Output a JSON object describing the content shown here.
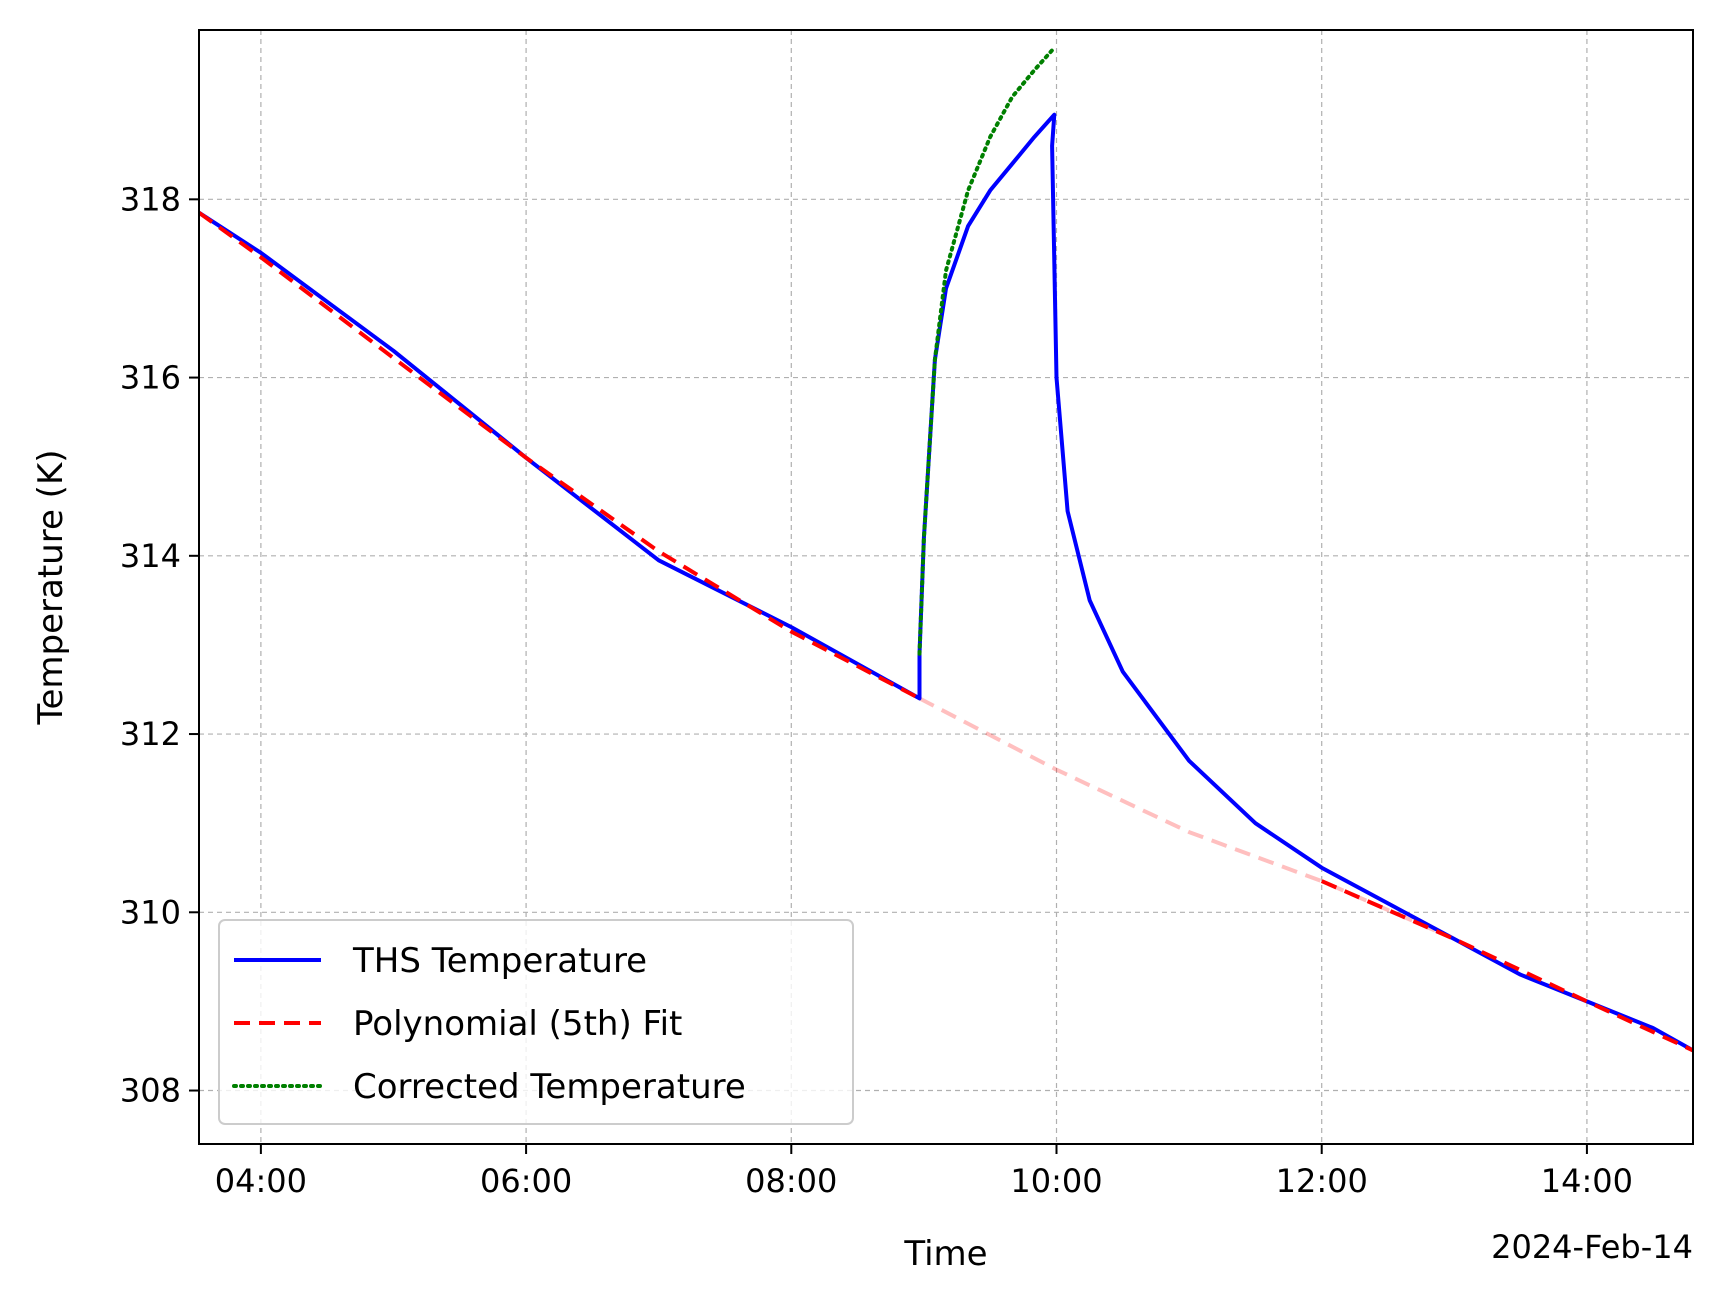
{
  "chart_data": {
    "type": "line",
    "title": "",
    "xlabel": "Time",
    "ylabel": "Temperature (K)",
    "x_offset_label": "2024-Feb-14",
    "x_range": [
      "03:32",
      "14:48"
    ],
    "ylim": [
      307.4,
      319.9
    ],
    "xticks": [
      "04:00",
      "06:00",
      "08:00",
      "10:00",
      "12:00",
      "14:00"
    ],
    "yticks": [
      308,
      310,
      312,
      314,
      316,
      318
    ],
    "grid": true,
    "legend_position": "lower left",
    "series": [
      {
        "name": "THS Temperature",
        "color": "#0000ff",
        "style": "solid",
        "points": [
          [
            "03:32",
            317.85
          ],
          [
            "04:00",
            317.4
          ],
          [
            "05:00",
            316.3
          ],
          [
            "06:00",
            315.1
          ],
          [
            "07:00",
            313.95
          ],
          [
            "08:00",
            313.2
          ],
          [
            "08:58",
            312.4
          ],
          [
            "08:58",
            312.9
          ],
          [
            "09:00",
            314.2
          ],
          [
            "09:05",
            316.2
          ],
          [
            "09:10",
            317.0
          ],
          [
            "09:20",
            317.7
          ],
          [
            "09:30",
            318.1
          ],
          [
            "09:40",
            318.4
          ],
          [
            "09:50",
            318.7
          ],
          [
            "09:59",
            318.95
          ],
          [
            "09:58",
            318.6
          ],
          [
            "10:00",
            316.0
          ],
          [
            "10:05",
            314.5
          ],
          [
            "10:15",
            313.5
          ],
          [
            "10:30",
            312.7
          ],
          [
            "11:00",
            311.7
          ],
          [
            "11:30",
            311.0
          ],
          [
            "12:00",
            310.5
          ],
          [
            "12:30",
            310.1
          ],
          [
            "13:00",
            309.7
          ],
          [
            "13:30",
            309.3
          ],
          [
            "14:00",
            309.0
          ],
          [
            "14:30",
            308.7
          ],
          [
            "14:48",
            308.45
          ]
        ]
      },
      {
        "name": "Polynomial (5th) Fit",
        "color": "#ff0000",
        "style": "dashed",
        "points": [
          [
            "03:32",
            317.85
          ],
          [
            "04:00",
            317.35
          ],
          [
            "05:00",
            316.22
          ],
          [
            "06:00",
            315.1
          ],
          [
            "07:00",
            314.05
          ],
          [
            "08:00",
            313.15
          ],
          [
            "08:58",
            312.4
          ],
          [
            "10:00",
            311.6
          ],
          [
            "11:00",
            310.9
          ],
          [
            "12:00",
            310.35
          ],
          [
            "13:00",
            309.7
          ],
          [
            "14:00",
            309.0
          ],
          [
            "14:48",
            308.45
          ]
        ]
      },
      {
        "name": "Corrected Temperature",
        "color": "#008000",
        "style": "dotted",
        "points": [
          [
            "08:58",
            312.9
          ],
          [
            "09:00",
            314.2
          ],
          [
            "09:05",
            316.2
          ],
          [
            "09:10",
            317.2
          ],
          [
            "09:20",
            318.1
          ],
          [
            "09:30",
            318.7
          ],
          [
            "09:40",
            319.15
          ],
          [
            "09:50",
            319.45
          ],
          [
            "09:59",
            319.7
          ]
        ]
      }
    ]
  }
}
